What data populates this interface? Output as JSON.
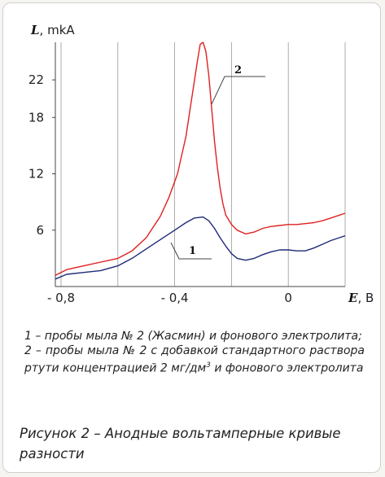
{
  "chart_data": {
    "type": "line",
    "xlabel_symbol": "E",
    "xlabel_unit": ", В",
    "ylabel_symbol": "L",
    "ylabel_unit": ", mkA",
    "xlim": [
      -0.82,
      0.2
    ],
    "ylim": [
      0,
      26
    ],
    "x_ticks": [
      -0.8,
      -0.4,
      0
    ],
    "x_tick_labels": [
      "- 0,8",
      "- 0,4",
      "0"
    ],
    "y_ticks": [
      6,
      12,
      18,
      22
    ],
    "y_tick_labels": [
      "6",
      "12",
      "18",
      "22"
    ],
    "grid": "vertical",
    "series": [
      {
        "name": "1",
        "color": "#1f2a78",
        "x": [
          -0.82,
          -0.78,
          -0.72,
          -0.66,
          -0.6,
          -0.55,
          -0.5,
          -0.45,
          -0.4,
          -0.36,
          -0.33,
          -0.3,
          -0.28,
          -0.26,
          -0.24,
          -0.22,
          -0.2,
          -0.18,
          -0.15,
          -0.12,
          -0.09,
          -0.06,
          -0.03,
          0.0,
          0.03,
          0.06,
          0.09,
          0.12,
          0.15,
          0.18,
          0.2
        ],
        "y": [
          0.8,
          1.3,
          1.5,
          1.7,
          2.2,
          3.0,
          4.0,
          5.0,
          6.0,
          6.8,
          7.3,
          7.4,
          7.0,
          6.2,
          5.2,
          4.3,
          3.5,
          3.0,
          2.8,
          3.0,
          3.4,
          3.7,
          3.9,
          3.9,
          3.8,
          3.8,
          4.1,
          4.5,
          4.9,
          5.2,
          5.4
        ]
      },
      {
        "name": "2",
        "color": "#e02020",
        "x": [
          -0.82,
          -0.78,
          -0.72,
          -0.66,
          -0.6,
          -0.55,
          -0.5,
          -0.45,
          -0.42,
          -0.39,
          -0.36,
          -0.34,
          -0.32,
          -0.31,
          -0.3,
          -0.29,
          -0.28,
          -0.27,
          -0.26,
          -0.25,
          -0.24,
          -0.23,
          -0.22,
          -0.2,
          -0.18,
          -0.15,
          -0.12,
          -0.09,
          -0.06,
          -0.03,
          0.0,
          0.03,
          0.06,
          0.09,
          0.12,
          0.15,
          0.18,
          0.2
        ],
        "y": [
          1.2,
          1.8,
          2.2,
          2.6,
          3.0,
          3.8,
          5.2,
          7.5,
          9.5,
          12.0,
          16.0,
          20.0,
          24.0,
          25.8,
          26.0,
          25.0,
          22.5,
          19.0,
          15.5,
          12.8,
          10.5,
          8.8,
          7.6,
          6.6,
          6.0,
          5.6,
          5.8,
          6.2,
          6.4,
          6.5,
          6.6,
          6.6,
          6.7,
          6.8,
          7.0,
          7.3,
          7.6,
          7.8
        ]
      }
    ]
  },
  "legend": {
    "line1": "1 – пробы мыла № 2 (Жасмин) и фонового электролита;",
    "line2_pre": "2 – пробы мыла № 2 с добавкой стандартного раствора ртути концентрацией 2 мг/дм",
    "line2_sup": "3",
    "line2_post": " и фонового электролита"
  },
  "caption": "Рисунок 2 – Анодные  вольтамперные кривые разности"
}
